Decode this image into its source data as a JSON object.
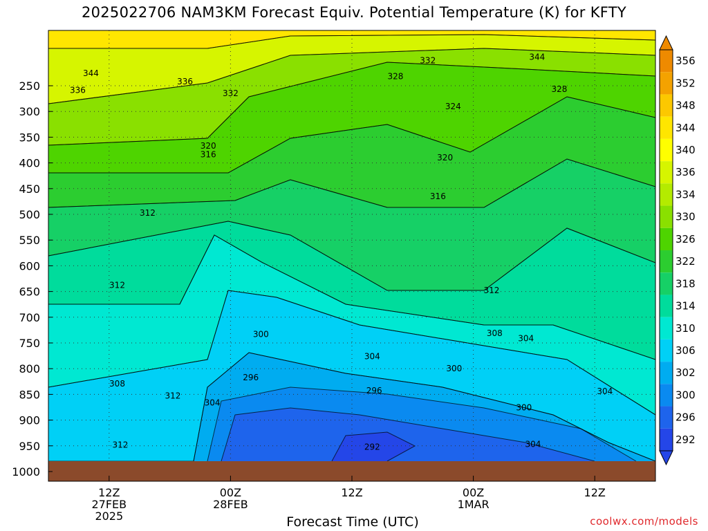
{
  "header": {
    "title": "2025022706 NAM3KM Forecast Equiv. Potential Temperature (K) for KFTY"
  },
  "footer": {
    "xlabel": "Forecast Time (UTC)",
    "credit": "coolwx.com/models"
  },
  "colors": {
    "ground": "#8b4a2b",
    "grid": "#333333"
  },
  "chart_data": {
    "type": "heatmap",
    "title": "2025022706 NAM3KM Forecast Equiv. Potential Temperature (K) for KFTY",
    "xlabel": "Forecast Time (UTC)",
    "ylabel": "",
    "x_range_hours": [
      6,
      66
    ],
    "y_levels_hpa": [
      250,
      300,
      350,
      400,
      450,
      500,
      550,
      600,
      650,
      700,
      750,
      800,
      850,
      900,
      950,
      1000
    ],
    "x_ticks": [
      {
        "hour": 12,
        "lines": [
          "12Z",
          "27FEB",
          "2025"
        ]
      },
      {
        "hour": 24,
        "lines": [
          "00Z",
          "28FEB"
        ]
      },
      {
        "hour": 36,
        "lines": [
          "12Z"
        ]
      },
      {
        "hour": 48,
        "lines": [
          "00Z",
          "1MAR"
        ]
      },
      {
        "hour": 60,
        "lines": [
          "12Z"
        ]
      }
    ],
    "colorbar": [
      {
        "value": 356,
        "color": "#ee8a00"
      },
      {
        "value": 352,
        "color": "#f4a200"
      },
      {
        "value": 348,
        "color": "#fcc800"
      },
      {
        "value": 344,
        "color": "#ffe600"
      },
      {
        "value": 340,
        "color": "#ffff00"
      },
      {
        "value": 336,
        "color": "#d6f500"
      },
      {
        "value": 334,
        "color": "#b4eb00"
      },
      {
        "value": 330,
        "color": "#8ae000"
      },
      {
        "value": 326,
        "color": "#4ed400"
      },
      {
        "value": 322,
        "color": "#2ccd30"
      },
      {
        "value": 318,
        "color": "#16d066"
      },
      {
        "value": 314,
        "color": "#00dc9c"
      },
      {
        "value": 310,
        "color": "#00e8d2"
      },
      {
        "value": 306,
        "color": "#00d0f6"
      },
      {
        "value": 302,
        "color": "#00acf0"
      },
      {
        "value": 300,
        "color": "#0a8af0"
      },
      {
        "value": 296,
        "color": "#1e64ec"
      },
      {
        "value": 292,
        "color": "#2446e8"
      }
    ],
    "contour_labels": [
      {
        "text": "344",
        "hour": 10.2,
        "hpa": 226
      },
      {
        "text": "336",
        "hour": 8.9,
        "hpa": 259
      },
      {
        "text": "336",
        "hour": 19.5,
        "hpa": 242
      },
      {
        "text": "332",
        "hour": 24.0,
        "hpa": 265
      },
      {
        "text": "332",
        "hour": 43.5,
        "hpa": 201
      },
      {
        "text": "344",
        "hour": 54.3,
        "hpa": 194
      },
      {
        "text": "328",
        "hour": 40.3,
        "hpa": 232
      },
      {
        "text": "328",
        "hour": 56.5,
        "hpa": 257
      },
      {
        "text": "324",
        "hour": 46.0,
        "hpa": 290
      },
      {
        "text": "320",
        "hour": 21.8,
        "hpa": 367
      },
      {
        "text": "316",
        "hour": 21.8,
        "hpa": 384
      },
      {
        "text": "320",
        "hour": 45.2,
        "hpa": 390
      },
      {
        "text": "316",
        "hour": 44.5,
        "hpa": 465
      },
      {
        "text": "312",
        "hour": 15.8,
        "hpa": 497
      },
      {
        "text": "312",
        "hour": 12.8,
        "hpa": 638
      },
      {
        "text": "312",
        "hour": 49.8,
        "hpa": 648
      },
      {
        "text": "308",
        "hour": 50.1,
        "hpa": 731
      },
      {
        "text": "304",
        "hour": 53.2,
        "hpa": 741
      },
      {
        "text": "300",
        "hour": 27.0,
        "hpa": 733
      },
      {
        "text": "304",
        "hour": 38.0,
        "hpa": 776
      },
      {
        "text": "300",
        "hour": 46.1,
        "hpa": 800
      },
      {
        "text": "296",
        "hour": 26.0,
        "hpa": 817
      },
      {
        "text": "296",
        "hour": 38.2,
        "hpa": 843
      },
      {
        "text": "312",
        "hour": 18.3,
        "hpa": 853
      },
      {
        "text": "304",
        "hour": 22.2,
        "hpa": 866
      },
      {
        "text": "308",
        "hour": 12.8,
        "hpa": 829
      },
      {
        "text": "300",
        "hour": 53.0,
        "hpa": 876
      },
      {
        "text": "304",
        "hour": 61.0,
        "hpa": 844
      },
      {
        "text": "312",
        "hour": 13.1,
        "hpa": 948
      },
      {
        "text": "292",
        "hour": 38.0,
        "hpa": 952
      },
      {
        "text": "304",
        "hour": 53.9,
        "hpa": 947
      }
    ]
  }
}
